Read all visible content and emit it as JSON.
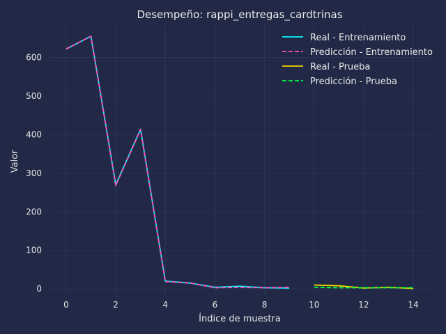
{
  "chart_data": {
    "type": "line",
    "title": "Desempeño: rappi_entregas_cardtrinas",
    "xlabel": "Índice de muestra",
    "ylabel": "Valor",
    "xlim": [
      -0.7,
      14.7
    ],
    "ylim": [
      -16,
      684
    ],
    "xticks": [
      0,
      2,
      4,
      6,
      8,
      10,
      12,
      14
    ],
    "yticks": [
      0,
      100,
      200,
      300,
      400,
      500,
      600
    ],
    "grid": true,
    "legend_position": "top-right",
    "series": [
      {
        "name": "Real - Entrenamiento",
        "color": "#08F7FE",
        "dash": "solid",
        "x": [
          0,
          1,
          2,
          3,
          4,
          5,
          6,
          7,
          8,
          9
        ],
        "y": [
          622,
          655,
          270,
          414,
          20,
          15,
          4,
          7,
          3,
          2
        ]
      },
      {
        "name": "Predicción - Entrenamiento",
        "color": "#FE53BB",
        "dash": "dashed",
        "x": [
          0,
          1,
          2,
          3,
          4,
          5,
          6,
          7,
          8,
          9
        ],
        "y": [
          622,
          655,
          268,
          413,
          19,
          15,
          3,
          4,
          3,
          4
        ]
      },
      {
        "name": "Real - Prueba",
        "color": "#F5D300",
        "dash": "solid",
        "x": [
          10,
          11,
          12,
          13,
          14
        ],
        "y": [
          10,
          8,
          2,
          4,
          1
        ]
      },
      {
        "name": "Predicción - Prueba",
        "color": "#00ff41",
        "dash": "dashed",
        "x": [
          10,
          11,
          12,
          13,
          14
        ],
        "y": [
          4,
          3,
          3,
          3,
          3
        ]
      }
    ]
  }
}
